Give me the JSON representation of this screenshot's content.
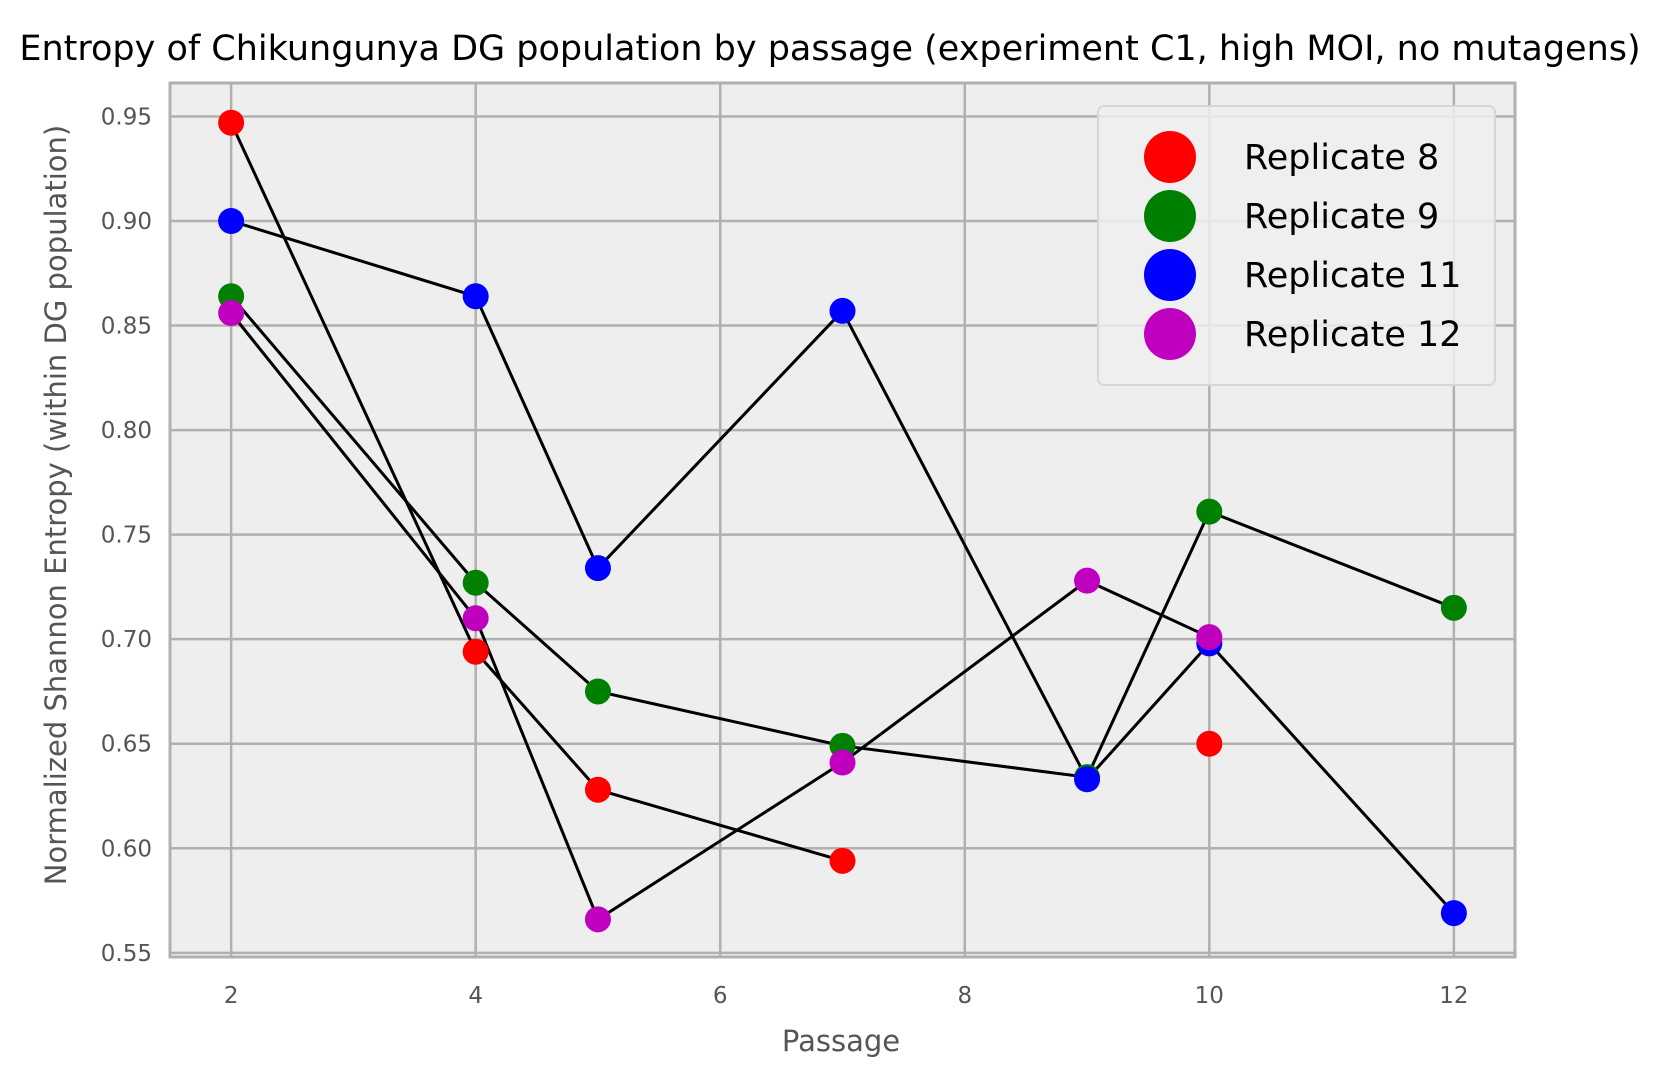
{
  "chart_data": {
    "type": "scatter",
    "title": "Entropy of Chikungunya DG population by passage (experiment C1, high MOI, no mutagens)",
    "xlabel": "Passage",
    "ylabel": "Normalized Shannon Entropy (within DG population)",
    "xlim": [
      1.5,
      12.5
    ],
    "ylim": [
      0.548,
      0.966
    ],
    "xticks": [
      2,
      4,
      6,
      8,
      10,
      12
    ],
    "yticks": [
      0.55,
      0.6,
      0.65,
      0.7,
      0.75,
      0.8,
      0.85,
      0.9,
      0.95
    ],
    "grid": true,
    "legend_position": "top-right",
    "background_color": "#eeeeee",
    "grid_color": "#b0b0b0",
    "line_color": "#000000",
    "series": [
      {
        "name": "Replicate 8",
        "color": "#ff0000",
        "points": [
          {
            "x": 2,
            "y": 0.947
          },
          {
            "x": 4,
            "y": 0.694
          },
          {
            "x": 5,
            "y": 0.628
          },
          {
            "x": 7,
            "y": 0.594
          },
          {
            "x": 10,
            "y": 0.65
          }
        ]
      },
      {
        "name": "Replicate 9",
        "color": "#008000",
        "points": [
          {
            "x": 2,
            "y": 0.864
          },
          {
            "x": 4,
            "y": 0.727
          },
          {
            "x": 5,
            "y": 0.675
          },
          {
            "x": 7,
            "y": 0.649
          },
          {
            "x": 9,
            "y": 0.634
          },
          {
            "x": 10,
            "y": 0.761
          },
          {
            "x": 12,
            "y": 0.715
          }
        ]
      },
      {
        "name": "Replicate 11",
        "color": "#0000ff",
        "points": [
          {
            "x": 2,
            "y": 0.9
          },
          {
            "x": 4,
            "y": 0.864
          },
          {
            "x": 5,
            "y": 0.734
          },
          {
            "x": 7,
            "y": 0.857
          },
          {
            "x": 9,
            "y": 0.633
          },
          {
            "x": 10,
            "y": 0.698
          },
          {
            "x": 12,
            "y": 0.569
          }
        ]
      },
      {
        "name": "Replicate 12",
        "color": "#bf00bf",
        "points": [
          {
            "x": 2,
            "y": 0.856
          },
          {
            "x": 4,
            "y": 0.71
          },
          {
            "x": 5,
            "y": 0.566
          },
          {
            "x": 7,
            "y": 0.641
          },
          {
            "x": 9,
            "y": 0.728
          },
          {
            "x": 10,
            "y": 0.701
          }
        ]
      }
    ],
    "connecting_lines": [
      {
        "series": "Replicate 8",
        "x": [
          2,
          4,
          5,
          7
        ]
      },
      {
        "series": "Replicate 9",
        "x": [
          2,
          4,
          5,
          7,
          9,
          10,
          12
        ]
      },
      {
        "series": "Replicate 11",
        "x": [
          2,
          4,
          5,
          7,
          9,
          10,
          12
        ]
      },
      {
        "series": "Replicate 12",
        "x": [
          2,
          4,
          5,
          7,
          9,
          10
        ]
      }
    ]
  }
}
